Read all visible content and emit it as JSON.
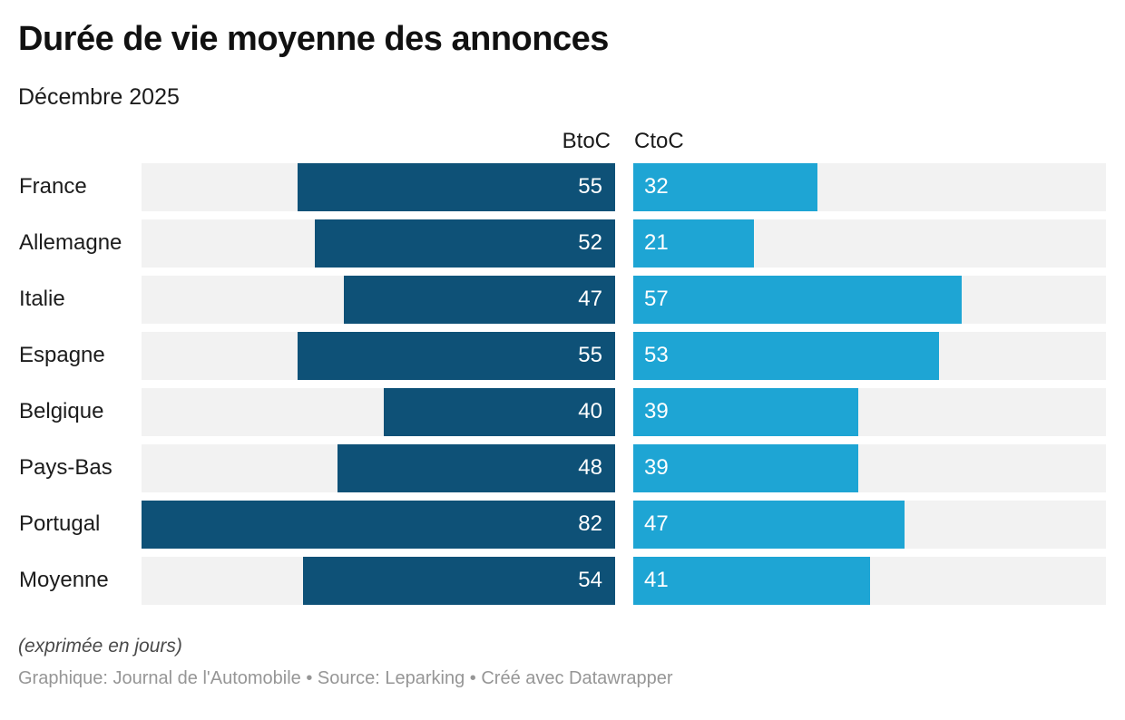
{
  "title": "Durée de vie moyenne des annonces",
  "subtitle": "Décembre 2025",
  "columns": {
    "btoc_label": "BtoC",
    "ctoc_label": "CtoC"
  },
  "footer": {
    "note": "(exprimée en jours)",
    "credit": "Graphique: Journal de l'Automobile • Source: Leparking • Créé avec Datawrapper"
  },
  "colors": {
    "btoc_bar": "#0e5177",
    "ctoc_bar": "#1ea5d4",
    "track": "#f2f2f2",
    "value_text": "#ffffff"
  },
  "chart_data": {
    "type": "bar",
    "orientation": "horizontal",
    "title": "Durée de vie moyenne des annonces",
    "subtitle": "Décembre 2025",
    "unit": "jours",
    "categories": [
      "France",
      "Allemagne",
      "Italie",
      "Espagne",
      "Belgique",
      "Pays-Bas",
      "Portugal",
      "Moyenne"
    ],
    "series": [
      {
        "name": "BtoC",
        "values": [
          55,
          52,
          47,
          55,
          40,
          48,
          82,
          54
        ]
      },
      {
        "name": "CtoC",
        "values": [
          32,
          21,
          57,
          53,
          39,
          39,
          47,
          41
        ]
      }
    ],
    "xlim": [
      0,
      82
    ],
    "grid": false,
    "legend_position": "top",
    "value_labels": "inside-bar"
  }
}
